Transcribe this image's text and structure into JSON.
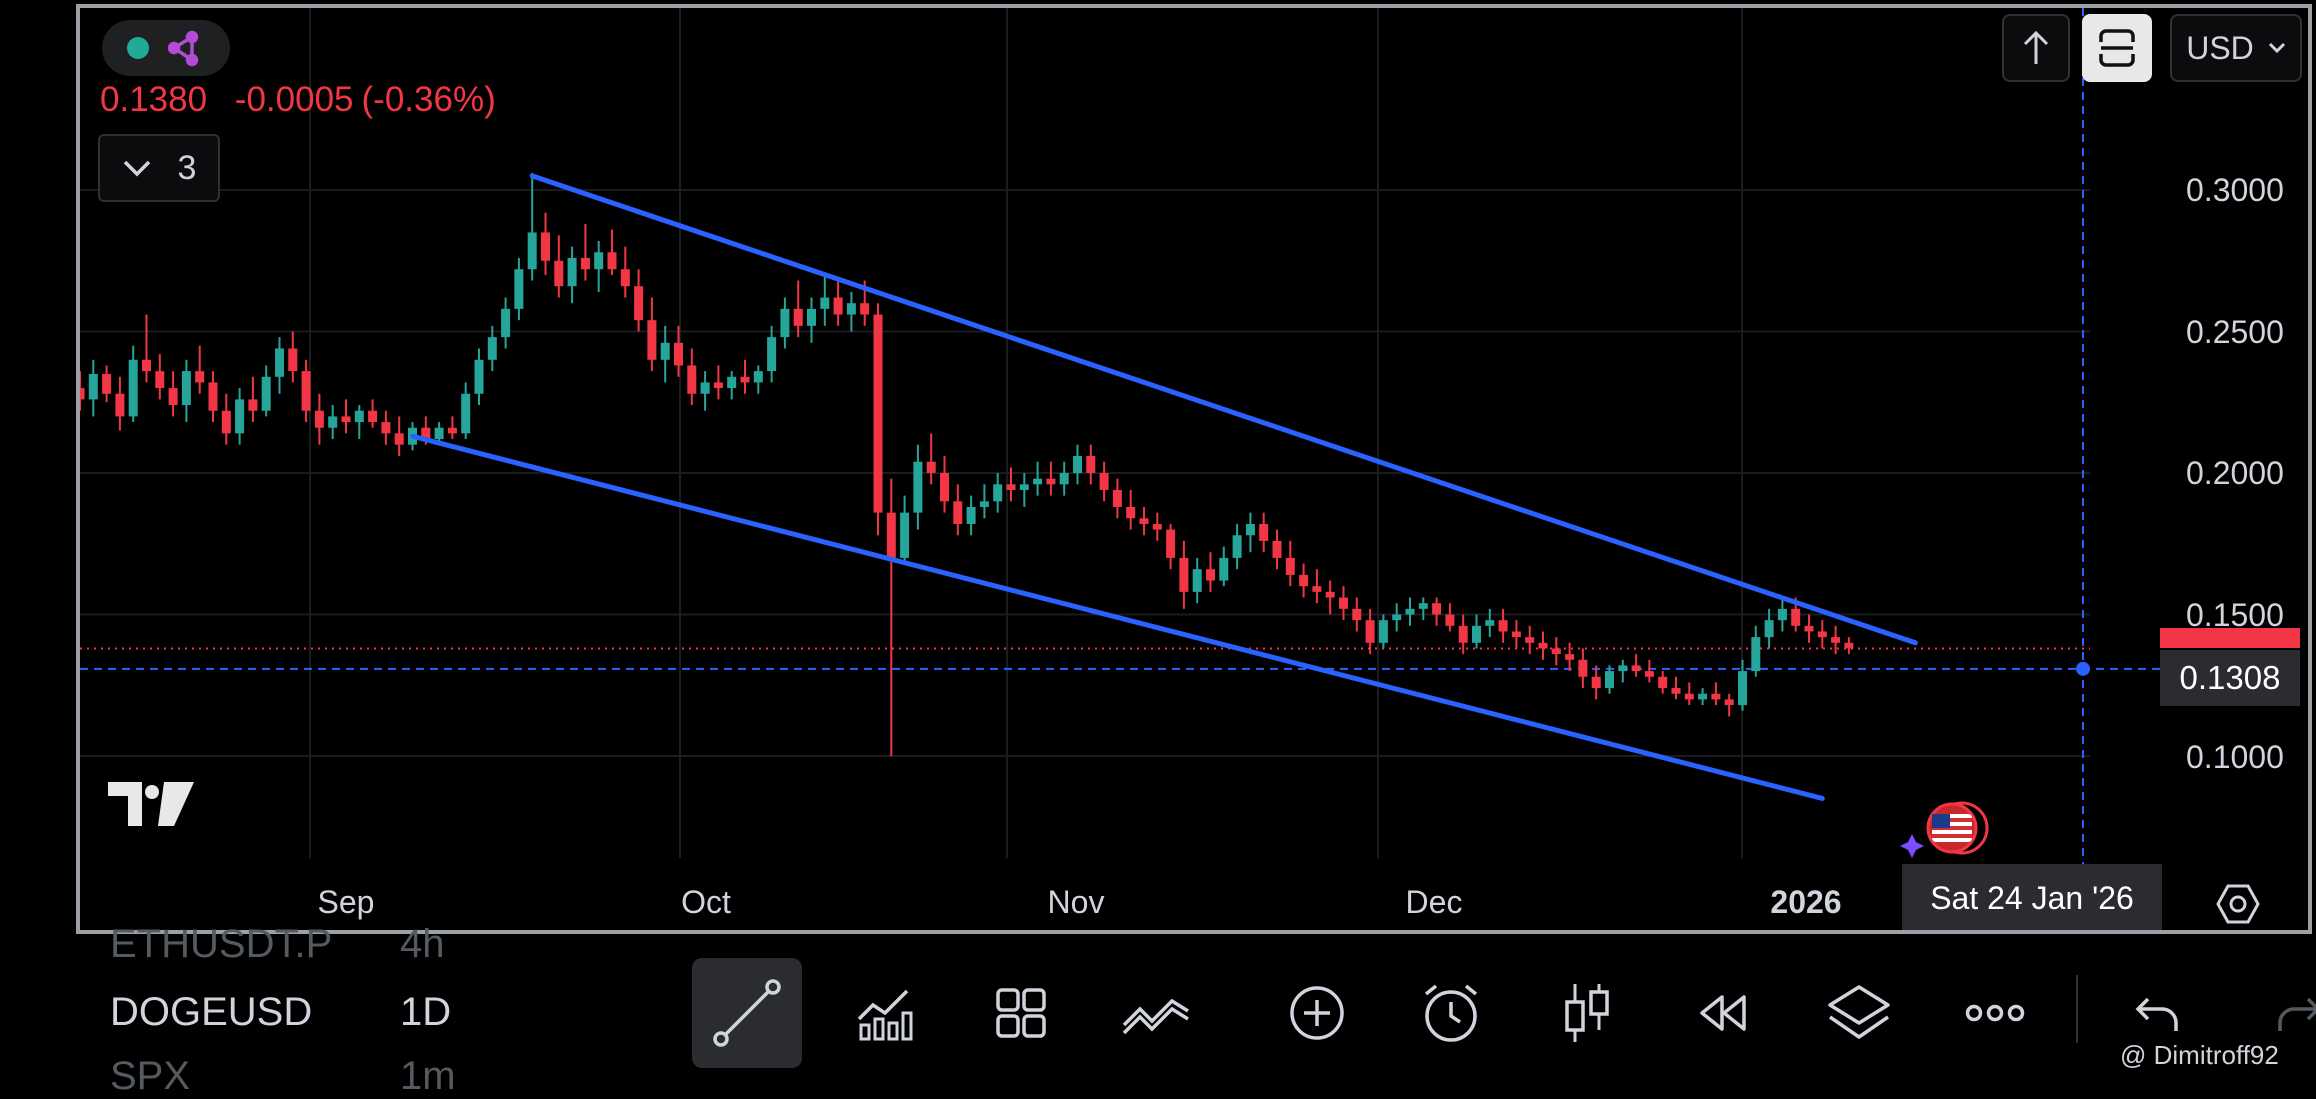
{
  "header": {
    "last_price": "0.1380",
    "change": "-0.0005",
    "change_pct": "(-0.36%)",
    "indicator_count": "3",
    "currency": "USD"
  },
  "price_axis": {
    "labels": [
      "0.3000",
      "0.2500",
      "0.2000",
      "0.1500",
      "0.1000"
    ],
    "crosshair_price": "0.1308"
  },
  "time_axis": {
    "labels": [
      {
        "text": "Sep",
        "bold": false
      },
      {
        "text": "Oct",
        "bold": false
      },
      {
        "text": "Nov",
        "bold": false
      },
      {
        "text": "Dec",
        "bold": false
      },
      {
        "text": "2026",
        "bold": true
      }
    ],
    "crosshair_date": "Sat 24 Jan '26"
  },
  "colors": {
    "up": "#26a69a",
    "down": "#f23645",
    "trendline": "#2962ff",
    "crosshair": "#2962ff"
  },
  "chart_data": {
    "type": "candlestick",
    "symbol": "DOGEUSD",
    "interval": "1D",
    "ylim": [
      0.065,
      0.32
    ],
    "x_ticks": [
      "Sep",
      "Oct",
      "Nov",
      "Dec",
      "2026"
    ],
    "last_price": 0.138,
    "candles": [
      [
        0.23,
        0.236,
        0.222,
        0.226
      ],
      [
        0.226,
        0.24,
        0.22,
        0.235
      ],
      [
        0.235,
        0.238,
        0.225,
        0.228
      ],
      [
        0.228,
        0.234,
        0.215,
        0.22
      ],
      [
        0.22,
        0.245,
        0.218,
        0.24
      ],
      [
        0.24,
        0.256,
        0.232,
        0.236
      ],
      [
        0.236,
        0.242,
        0.226,
        0.23
      ],
      [
        0.23,
        0.236,
        0.22,
        0.224
      ],
      [
        0.224,
        0.24,
        0.218,
        0.236
      ],
      [
        0.236,
        0.245,
        0.228,
        0.232
      ],
      [
        0.232,
        0.236,
        0.218,
        0.222
      ],
      [
        0.222,
        0.228,
        0.21,
        0.214
      ],
      [
        0.214,
        0.23,
        0.21,
        0.226
      ],
      [
        0.226,
        0.234,
        0.218,
        0.222
      ],
      [
        0.222,
        0.238,
        0.22,
        0.234
      ],
      [
        0.234,
        0.248,
        0.228,
        0.244
      ],
      [
        0.244,
        0.25,
        0.232,
        0.236
      ],
      [
        0.236,
        0.24,
        0.218,
        0.222
      ],
      [
        0.222,
        0.228,
        0.21,
        0.216
      ],
      [
        0.216,
        0.224,
        0.212,
        0.22
      ],
      [
        0.22,
        0.226,
        0.214,
        0.218
      ],
      [
        0.218,
        0.224,
        0.212,
        0.222
      ],
      [
        0.222,
        0.226,
        0.216,
        0.218
      ],
      [
        0.218,
        0.222,
        0.21,
        0.214
      ],
      [
        0.214,
        0.22,
        0.206,
        0.21
      ],
      [
        0.21,
        0.218,
        0.208,
        0.216
      ],
      [
        0.216,
        0.22,
        0.21,
        0.212
      ],
      [
        0.212,
        0.218,
        0.21,
        0.216
      ],
      [
        0.216,
        0.22,
        0.212,
        0.214
      ],
      [
        0.214,
        0.232,
        0.212,
        0.228
      ],
      [
        0.228,
        0.244,
        0.224,
        0.24
      ],
      [
        0.24,
        0.252,
        0.236,
        0.248
      ],
      [
        0.248,
        0.262,
        0.244,
        0.258
      ],
      [
        0.258,
        0.276,
        0.254,
        0.272
      ],
      [
        0.272,
        0.306,
        0.268,
        0.285
      ],
      [
        0.285,
        0.292,
        0.27,
        0.275
      ],
      [
        0.275,
        0.284,
        0.262,
        0.266
      ],
      [
        0.266,
        0.28,
        0.26,
        0.276
      ],
      [
        0.276,
        0.288,
        0.268,
        0.272
      ],
      [
        0.272,
        0.282,
        0.264,
        0.278
      ],
      [
        0.278,
        0.286,
        0.27,
        0.272
      ],
      [
        0.272,
        0.28,
        0.262,
        0.266
      ],
      [
        0.266,
        0.272,
        0.25,
        0.254
      ],
      [
        0.254,
        0.262,
        0.236,
        0.24
      ],
      [
        0.24,
        0.252,
        0.232,
        0.246
      ],
      [
        0.246,
        0.252,
        0.234,
        0.238
      ],
      [
        0.238,
        0.244,
        0.224,
        0.228
      ],
      [
        0.228,
        0.236,
        0.222,
        0.232
      ],
      [
        0.232,
        0.238,
        0.226,
        0.23
      ],
      [
        0.23,
        0.236,
        0.226,
        0.234
      ],
      [
        0.234,
        0.24,
        0.228,
        0.232
      ],
      [
        0.232,
        0.238,
        0.228,
        0.236
      ],
      [
        0.236,
        0.252,
        0.232,
        0.248
      ],
      [
        0.248,
        0.262,
        0.244,
        0.258
      ],
      [
        0.258,
        0.268,
        0.248,
        0.252
      ],
      [
        0.252,
        0.262,
        0.246,
        0.258
      ],
      [
        0.258,
        0.27,
        0.252,
        0.262
      ],
      [
        0.262,
        0.268,
        0.252,
        0.256
      ],
      [
        0.256,
        0.264,
        0.25,
        0.26
      ],
      [
        0.26,
        0.268,
        0.252,
        0.256
      ],
      [
        0.256,
        0.26,
        0.178,
        0.186
      ],
      [
        0.186,
        0.198,
        0.1,
        0.17
      ],
      [
        0.17,
        0.192,
        0.168,
        0.186
      ],
      [
        0.186,
        0.21,
        0.18,
        0.204
      ],
      [
        0.204,
        0.214,
        0.196,
        0.2
      ],
      [
        0.2,
        0.206,
        0.186,
        0.19
      ],
      [
        0.19,
        0.196,
        0.178,
        0.182
      ],
      [
        0.182,
        0.192,
        0.178,
        0.188
      ],
      [
        0.188,
        0.196,
        0.184,
        0.19
      ],
      [
        0.19,
        0.2,
        0.186,
        0.196
      ],
      [
        0.196,
        0.202,
        0.19,
        0.194
      ],
      [
        0.194,
        0.2,
        0.188,
        0.196
      ],
      [
        0.196,
        0.204,
        0.192,
        0.198
      ],
      [
        0.198,
        0.204,
        0.192,
        0.196
      ],
      [
        0.196,
        0.204,
        0.192,
        0.2
      ],
      [
        0.2,
        0.21,
        0.196,
        0.206
      ],
      [
        0.206,
        0.21,
        0.196,
        0.2
      ],
      [
        0.2,
        0.204,
        0.19,
        0.194
      ],
      [
        0.194,
        0.198,
        0.184,
        0.188
      ],
      [
        0.188,
        0.194,
        0.18,
        0.184
      ],
      [
        0.184,
        0.188,
        0.178,
        0.182
      ],
      [
        0.182,
        0.186,
        0.176,
        0.18
      ],
      [
        0.18,
        0.182,
        0.166,
        0.17
      ],
      [
        0.17,
        0.176,
        0.152,
        0.158
      ],
      [
        0.158,
        0.17,
        0.154,
        0.166
      ],
      [
        0.166,
        0.172,
        0.158,
        0.162
      ],
      [
        0.162,
        0.174,
        0.16,
        0.17
      ],
      [
        0.17,
        0.182,
        0.166,
        0.178
      ],
      [
        0.178,
        0.186,
        0.172,
        0.182
      ],
      [
        0.182,
        0.186,
        0.172,
        0.176
      ],
      [
        0.176,
        0.18,
        0.166,
        0.17
      ],
      [
        0.17,
        0.176,
        0.16,
        0.164
      ],
      [
        0.164,
        0.168,
        0.156,
        0.16
      ],
      [
        0.16,
        0.166,
        0.154,
        0.158
      ],
      [
        0.158,
        0.162,
        0.15,
        0.156
      ],
      [
        0.156,
        0.16,
        0.148,
        0.152
      ],
      [
        0.152,
        0.156,
        0.144,
        0.148
      ],
      [
        0.148,
        0.152,
        0.136,
        0.14
      ],
      [
        0.14,
        0.15,
        0.138,
        0.148
      ],
      [
        0.148,
        0.154,
        0.144,
        0.15
      ],
      [
        0.15,
        0.156,
        0.146,
        0.152
      ],
      [
        0.152,
        0.156,
        0.148,
        0.154
      ],
      [
        0.154,
        0.156,
        0.146,
        0.15
      ],
      [
        0.15,
        0.154,
        0.144,
        0.146
      ],
      [
        0.146,
        0.15,
        0.136,
        0.14
      ],
      [
        0.14,
        0.15,
        0.138,
        0.146
      ],
      [
        0.146,
        0.152,
        0.142,
        0.148
      ],
      [
        0.148,
        0.152,
        0.14,
        0.144
      ],
      [
        0.144,
        0.148,
        0.138,
        0.142
      ],
      [
        0.142,
        0.146,
        0.136,
        0.14
      ],
      [
        0.14,
        0.144,
        0.134,
        0.138
      ],
      [
        0.138,
        0.142,
        0.132,
        0.136
      ],
      [
        0.136,
        0.14,
        0.13,
        0.134
      ],
      [
        0.134,
        0.138,
        0.124,
        0.128
      ],
      [
        0.128,
        0.132,
        0.12,
        0.124
      ],
      [
        0.124,
        0.132,
        0.122,
        0.13
      ],
      [
        0.13,
        0.134,
        0.126,
        0.132
      ],
      [
        0.132,
        0.136,
        0.128,
        0.13
      ],
      [
        0.13,
        0.134,
        0.126,
        0.128
      ],
      [
        0.128,
        0.13,
        0.122,
        0.124
      ],
      [
        0.124,
        0.128,
        0.12,
        0.122
      ],
      [
        0.122,
        0.126,
        0.118,
        0.12
      ],
      [
        0.12,
        0.124,
        0.118,
        0.122
      ],
      [
        0.122,
        0.126,
        0.118,
        0.12
      ],
      [
        0.12,
        0.122,
        0.114,
        0.118
      ],
      [
        0.118,
        0.134,
        0.116,
        0.13
      ],
      [
        0.13,
        0.146,
        0.128,
        0.142
      ],
      [
        0.142,
        0.152,
        0.138,
        0.148
      ],
      [
        0.148,
        0.156,
        0.144,
        0.152
      ],
      [
        0.152,
        0.156,
        0.144,
        0.146
      ],
      [
        0.146,
        0.15,
        0.14,
        0.144
      ],
      [
        0.144,
        0.148,
        0.138,
        0.142
      ],
      [
        0.142,
        0.146,
        0.136,
        0.14
      ],
      [
        0.14,
        0.142,
        0.136,
        0.138
      ]
    ],
    "trendlines": [
      {
        "from": [
          34,
          0.305
        ],
        "to": [
          138,
          0.14
        ]
      },
      {
        "from": [
          25,
          0.213
        ],
        "to": [
          131,
          0.085
        ]
      }
    ],
    "crosshair": {
      "price": 0.1308,
      "date": "Sat 24 Jan '26"
    }
  },
  "bottom_bar": {
    "watchlist": [
      {
        "symbol": "ETHUSDT.P",
        "interval": "4h",
        "faded": true
      },
      {
        "symbol": "DOGEUSD",
        "interval": "1D",
        "faded": false
      },
      {
        "symbol": "SPX",
        "interval": "1m",
        "faded": true
      }
    ],
    "tools": [
      "trendline-icon",
      "indicators-icon",
      "layouts-icon",
      "drawing-tools-icon",
      "add-icon",
      "alert-icon",
      "chart-type-icon",
      "replay-icon",
      "layers-icon",
      "more-icon",
      "undo-icon",
      "redo-icon"
    ]
  },
  "watermark": "@ Dimitroff92"
}
